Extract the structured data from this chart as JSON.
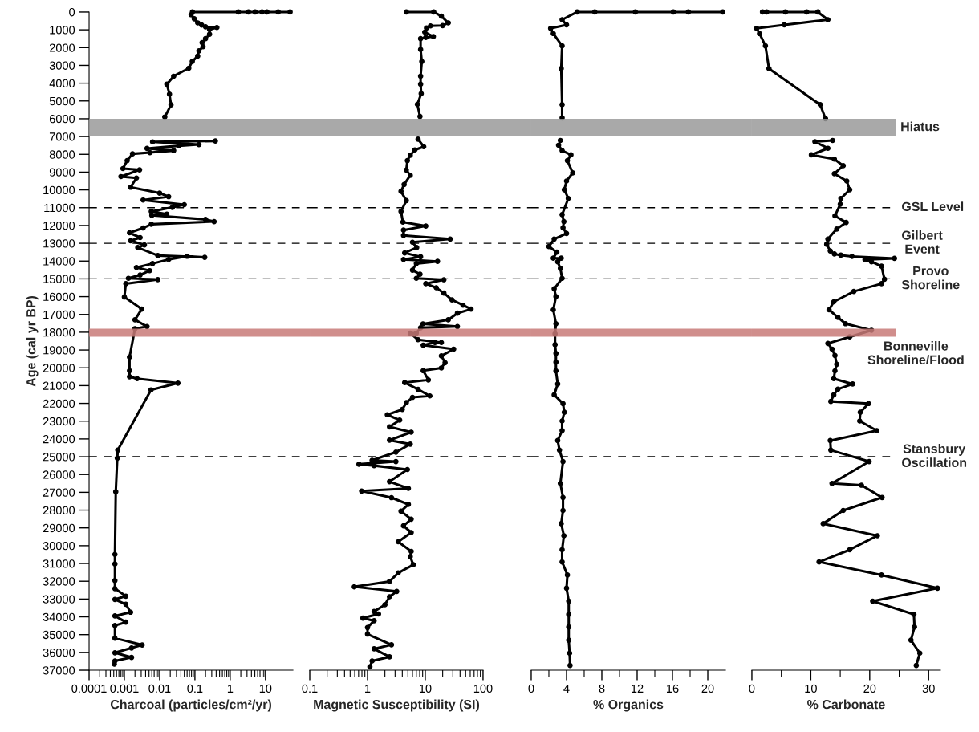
{
  "chart_data": [
    {
      "type": "line",
      "xlabel": "Charcoal (particles/cm²/yr)",
      "ylabel": "Age (cal yr BP)",
      "log": "x",
      "marker": "circle",
      "line_style": "solid",
      "xlim": [
        0.0001,
        60
      ],
      "ylim": [
        37000,
        0
      ],
      "xticks": [
        0.0001,
        0.001,
        0.01,
        0.1,
        1,
        10,
        {
          "value": 0.0002,
          "label": null
        },
        {
          "value": 0.0003,
          "label": null
        },
        {
          "value": 0.0004,
          "label": null
        },
        {
          "value": 0.0005,
          "label": null
        },
        {
          "value": 0.0006,
          "label": null
        },
        {
          "value": 0.0007,
          "label": null
        },
        {
          "value": 0.0008,
          "label": null
        },
        {
          "value": 0.0009,
          "label": null
        },
        {
          "value": 0.002,
          "label": null
        },
        {
          "value": 0.003,
          "label": null
        },
        {
          "value": 0.004,
          "label": null
        },
        {
          "value": 0.005,
          "label": null
        },
        {
          "value": 0.006,
          "label": null
        },
        {
          "value": 0.007,
          "label": null
        },
        {
          "value": 0.008,
          "label": null
        },
        {
          "value": 0.009,
          "label": null
        },
        {
          "value": 0.02,
          "label": null
        },
        {
          "value": 0.03,
          "label": null
        },
        {
          "value": 0.04,
          "label": null
        },
        {
          "value": 0.05,
          "label": null
        },
        {
          "value": 0.06,
          "label": null
        },
        {
          "value": 0.07,
          "label": null
        },
        {
          "value": 0.08,
          "label": null
        },
        {
          "value": 0.09,
          "label": null
        },
        {
          "value": 0.2,
          "label": null
        },
        {
          "value": 0.3,
          "label": null
        },
        {
          "value": 0.4,
          "label": null
        },
        {
          "value": 0.5,
          "label": null
        },
        {
          "value": 0.6,
          "label": null
        },
        {
          "value": 0.7,
          "label": null
        },
        {
          "value": 0.8,
          "label": null
        },
        {
          "value": 0.9,
          "label": null
        },
        {
          "value": 2,
          "label": null
        },
        {
          "value": 3,
          "label": null
        },
        {
          "value": 4,
          "label": null
        },
        {
          "value": 5,
          "label": null
        },
        {
          "value": 6,
          "label": null
        },
        {
          "value": 7,
          "label": null
        },
        {
          "value": 8,
          "label": null
        },
        {
          "value": 9,
          "label": null
        }
      ],
      "yticks": [
        0,
        1000,
        2000,
        3000,
        4000,
        5000,
        6000,
        7000,
        8000,
        9000,
        10000,
        11000,
        12000,
        13000,
        14000,
        15000,
        16000,
        17000,
        18000,
        19000,
        20000,
        21000,
        22000,
        23000,
        24000,
        25000,
        26000,
        27000,
        28000,
        29000,
        30000,
        31000,
        32000,
        33000,
        34000,
        35000,
        36000,
        37000
      ],
      "series": [
        {
          "color": "#000000",
          "x": [
            50,
            23,
            11,
            8,
            5.1,
            3.3,
            1.7,
            0.085,
            0.078,
            0.096,
            0.12,
            0.155,
            0.2,
            0.42,
            0.26,
            0.26,
            0.2,
            0.16,
            0.17,
            0.13,
            0.12,
            0.084,
            0.067,
            0.025,
            0.016,
            0.019,
            0.021,
            0.014,
            null,
            0.38,
            0.0063,
            0.13,
            0.035,
            0.0044,
            0.025,
            0.0053,
            0.0017,
            0.0012,
            0.00091,
            0.0027,
            0.0008,
            0.0022,
            0.0015,
            0.01,
            0.018,
            0.0034,
            0.05,
            0.023,
            0.0058,
            0.016,
            0.006,
            0.2,
            0.35,
            0.0058,
            0.0034,
            0.0014,
            0.0028,
            0.0015,
            0.0037,
            0.0024,
            0.0089,
            0.19,
            0.06,
            0.018,
            0.0063,
            0.0022,
            0.0052,
            0.0028,
            0.0013,
            0.0089,
            0.0011,
            0.001,
            0.0031,
            0.002,
            0.0044,
            0.002,
            0.0014,
            0.0014,
            0.0014,
            0.0023,
            0.033,
            0.0057,
            0.00065,
            0.00063,
            0.00057,
            0.00054,
            0.00054,
            0.00054,
            0.00054,
            0.0011,
            0.00054,
            0.0011,
            0.0015,
            0.00054,
            0.0011,
            0.00054,
            0.00054,
            0.0032,
            0.0016,
            0.00054,
            0.0016,
            0.00054,
            0.00052
          ],
          "values": [
            0,
            0,
            0,
            0,
            0,
            0,
            0,
            0,
            150,
            380,
            610,
            730,
            830,
            870,
            980,
            1250,
            1500,
            1720,
            1950,
            2180,
            2480,
            2780,
            3160,
            3610,
            4060,
            4620,
            5220,
            5900,
            null,
            7250,
            7300,
            7450,
            7520,
            7670,
            7790,
            7900,
            7970,
            8350,
            8800,
            8870,
            9250,
            9330,
            9850,
            10180,
            10380,
            10570,
            10830,
            10980,
            11210,
            11360,
            11430,
            11660,
            11780,
            11930,
            12140,
            12410,
            12680,
            12860,
            13090,
            13240,
            13690,
            13790,
            13730,
            13910,
            14140,
            14360,
            14540,
            14780,
            14970,
            15040,
            15270,
            16020,
            16700,
            17300,
            17680,
            17800,
            19400,
            20160,
            20500,
            20610,
            20860,
            21240,
            24630,
            25080,
            26970,
            30490,
            31030,
            31960,
            32410,
            32840,
            33020,
            33290,
            33740,
            33950,
            34300,
            34490,
            35200,
            35580,
            35750,
            36020,
            36280,
            36480,
            36660
          ]
        }
      ],
      "ref_lines": [
        {
          "axis": "y",
          "value": 11000,
          "color": "#000000",
          "line_style": "dashed"
        },
        {
          "axis": "y",
          "value": 13000,
          "color": "#000000",
          "line_style": "dashed"
        },
        {
          "axis": "y",
          "value": 15000,
          "color": "#000000",
          "line_style": "dashed"
        },
        {
          "axis": "y",
          "value": 25000,
          "color": "#000000",
          "line_style": "dashed"
        }
      ],
      "bands": [
        {
          "axis": "y",
          "from": 6000,
          "to": 7000,
          "color": "#9a9a9a"
        },
        {
          "axis": "y",
          "from": 17800,
          "to": 18250,
          "color": "#c87a78"
        }
      ]
    },
    {
      "type": "line",
      "xlabel": "Magnetic Susceptibility (SI)",
      "log": "x",
      "marker": "circle",
      "line_style": "solid",
      "tick_labels": "x",
      "xlim": [
        0.1,
        100
      ],
      "ylim": [
        37000,
        0
      ],
      "xticks": [
        0.1,
        1,
        10,
        100,
        {
          "value": 0.2,
          "label": null
        },
        {
          "value": 0.3,
          "label": null
        },
        {
          "value": 0.4,
          "label": null
        },
        {
          "value": 0.5,
          "label": null
        },
        {
          "value": 0.6,
          "label": null
        },
        {
          "value": 0.7,
          "label": null
        },
        {
          "value": 0.8,
          "label": null
        },
        {
          "value": 0.9,
          "label": null
        },
        {
          "value": 2,
          "label": null
        },
        {
          "value": 3,
          "label": null
        },
        {
          "value": 4,
          "label": null
        },
        {
          "value": 5,
          "label": null
        },
        {
          "value": 6,
          "label": null
        },
        {
          "value": 7,
          "label": null
        },
        {
          "value": 8,
          "label": null
        },
        {
          "value": 9,
          "label": null
        },
        {
          "value": 20,
          "label": null
        },
        {
          "value": 30,
          "label": null
        },
        {
          "value": 40,
          "label": null
        },
        {
          "value": 50,
          "label": null
        },
        {
          "value": 60,
          "label": null
        },
        {
          "value": 70,
          "label": null
        },
        {
          "value": 80,
          "label": null
        },
        {
          "value": 90,
          "label": null
        }
      ],
      "series": [
        {
          "color": "#000000",
          "x": [
            4.7,
            14,
            19,
            25,
            20,
            12.3,
            10.5,
            9.8,
            13.8,
            10.2,
            8.3,
            8.3,
            8.7,
            8.3,
            8.3,
            8.5,
            7.3,
            8.1,
            null,
            7.5,
            9.4,
            6.6,
            5.5,
            4.9,
            4.7,
            5.5,
            4.3,
            3.8,
            4.7,
            3.8,
            4.1,
            10.2,
            4.2,
            4.2,
            27,
            6.0,
            7.1,
            4.4,
            8.3,
            4.2,
            16.3,
            7.0,
            6.0,
            8.1,
            7.0,
            21,
            10.2,
            15.5,
            21,
            29,
            45,
            62,
            36,
            25,
            9.1,
            36,
            8.3,
            7.0,
            5.5,
            7.5,
            19,
            14.7,
            9.2,
            31,
            19,
            22,
            19,
            9.2,
            11.3,
            4.4,
            7.5,
            12,
            6.0,
            4.7,
            4.0,
            2.2,
            3.6,
            2.4,
            5.7,
            2.4,
            5.5,
            3.1,
            1.2,
            3.1,
            0.71,
            1.3,
            4.9,
            2.4,
            5.1,
            0.79,
            2.6,
            5.1,
            3.8,
            5.7,
            4.2,
            5.7,
            3.4,
            5.7,
            5.5,
            6.2,
            3.4,
            2.4,
            0.59,
            3.2,
            2.4,
            2.0,
            1.3,
            1.55,
            0.83,
            1.3,
            1.0,
            1.0,
            2.6,
            1.3,
            2.4,
            1.2,
            1.1
          ],
          "values": [
            0,
            0,
            230,
            610,
            760,
            780,
            900,
            1130,
            1380,
            1430,
            1500,
            2110,
            2780,
            3610,
            4060,
            4590,
            5190,
            5870,
            null,
            7150,
            7570,
            7750,
            8050,
            8350,
            8880,
            9180,
            9700,
            10080,
            10600,
            11210,
            11810,
            12030,
            12260,
            12560,
            12760,
            12940,
            13240,
            13540,
            13760,
            13910,
            14020,
            14140,
            14510,
            14740,
            14970,
            15050,
            15270,
            15500,
            15800,
            16180,
            16480,
            16700,
            16930,
            17300,
            17530,
            17680,
            17750,
            18050,
            18050,
            18420,
            18580,
            18580,
            18730,
            18950,
            19330,
            19710,
            20010,
            20160,
            20680,
            20830,
            21210,
            21580,
            21660,
            21960,
            22340,
            22640,
            22940,
            23320,
            23620,
            24070,
            24290,
            24740,
            25200,
            25270,
            25420,
            25500,
            25720,
            26400,
            26780,
            26930,
            27300,
            27680,
            28060,
            28510,
            28880,
            29260,
            29780,
            30320,
            30620,
            31070,
            31530,
            32010,
            32310,
            32570,
            32870,
            33320,
            33700,
            33840,
            34070,
            34220,
            34600,
            34970,
            35570,
            35800,
            36250,
            36480,
            36810
          ]
        }
      ],
      "ref_lines": [
        {
          "axis": "y",
          "value": 11000,
          "color": "#000000",
          "line_style": "dashed"
        },
        {
          "axis": "y",
          "value": 13000,
          "color": "#000000",
          "line_style": "dashed"
        },
        {
          "axis": "y",
          "value": 15000,
          "color": "#000000",
          "line_style": "dashed"
        },
        {
          "axis": "y",
          "value": 25000,
          "color": "#000000",
          "line_style": "dashed"
        }
      ],
      "bands": [
        {
          "axis": "y",
          "from": 6000,
          "to": 7000,
          "color": "#9a9a9a"
        },
        {
          "axis": "y",
          "from": 17800,
          "to": 18250,
          "color": "#c87a78"
        }
      ]
    },
    {
      "type": "line",
      "xlabel": "% Organics",
      "marker": "circle",
      "line_style": "solid",
      "tick_labels": "x",
      "xlim": [
        0,
        22
      ],
      "ylim": [
        37000,
        0
      ],
      "xticks": [
        0,
        4,
        8,
        12,
        16,
        20,
        {
          "value": 2,
          "label": null
        },
        {
          "value": 6,
          "label": null
        },
        {
          "value": 10,
          "label": null
        },
        {
          "value": 14,
          "label": null
        },
        {
          "value": 18,
          "label": null
        }
      ],
      "series": [
        {
          "color": "#000000",
          "x": [
            21.7,
            17.8,
            16.1,
            11.8,
            7.2,
            5.2,
            3.5,
            4.0,
            2.2,
            2.5,
            3.5,
            3.4,
            3.5,
            3.5,
            null,
            3.3,
            3.1,
            3.5,
            4.5,
            4.1,
            4.7,
            4.0,
            3.75,
            4.2,
            3.5,
            3.7,
            3.6,
            4.0,
            2.6,
            2.0,
            2.9,
            2.5,
            3.4,
            3.0,
            3.3,
            3.5,
            2.6,
            2.8,
            2.5,
            2.8,
            2.7,
            2.7,
            2.8,
            2.8,
            2.8,
            3.0,
            2.6,
            3.6,
            3.75,
            3.5,
            3.5,
            3.0,
            3.2,
            3.6,
            3.3,
            3.6,
            3.6,
            3.4,
            3.7,
            3.5,
            3.5,
            4.1,
            4.0,
            4.25,
            4.25,
            4.25,
            4.25,
            4.35,
            4.4
          ],
          "values": [
            0,
            0,
            0,
            0,
            0,
            0,
            430,
            720,
            920,
            1210,
            1900,
            3180,
            5210,
            5950,
            null,
            7220,
            7490,
            7790,
            8030,
            8350,
            9040,
            9500,
            9990,
            10480,
            11390,
            11780,
            12130,
            12450,
            12760,
            13180,
            13500,
            13840,
            13840,
            14040,
            14410,
            14970,
            15560,
            16000,
            16740,
            17520,
            18090,
            18700,
            19190,
            19680,
            20170,
            20910,
            21520,
            22010,
            22500,
            22990,
            23530,
            24090,
            24630,
            25270,
            26500,
            27290,
            28020,
            28760,
            29440,
            30230,
            30910,
            31650,
            32390,
            33120,
            33860,
            34570,
            35310,
            36040,
            36730
          ]
        }
      ],
      "ref_lines": [
        {
          "axis": "y",
          "value": 11000,
          "color": "#000000",
          "line_style": "dashed"
        },
        {
          "axis": "y",
          "value": 13000,
          "color": "#000000",
          "line_style": "dashed"
        },
        {
          "axis": "y",
          "value": 15000,
          "color": "#000000",
          "line_style": "dashed"
        },
        {
          "axis": "y",
          "value": 25000,
          "color": "#000000",
          "line_style": "dashed"
        }
      ],
      "bands": [
        {
          "axis": "y",
          "from": 6000,
          "to": 7000,
          "color": "#9a9a9a"
        },
        {
          "axis": "y",
          "from": 17800,
          "to": 18250,
          "color": "#c87a78"
        }
      ]
    },
    {
      "type": "line",
      "xlabel": "% Carbonate",
      "marker": "circle",
      "line_style": "solid",
      "tick_labels": "x",
      "xlim": [
        0,
        32
      ],
      "ylim": [
        37000,
        0
      ],
      "xticks": [
        0,
        10,
        20,
        30,
        {
          "value": 5,
          "label": null
        },
        {
          "value": 15,
          "label": null
        },
        {
          "value": 25,
          "label": null
        }
      ],
      "series": [
        {
          "color": "#000000",
          "x": [
            1.8,
            2.5,
            5.7,
            9.3,
            11.2,
            12.9,
            5.5,
            0.8,
            1.3,
            2.3,
            2.9,
            11.6,
            12.5,
            null,
            13.7,
            10.7,
            12.9,
            10.1,
            14.0,
            15.5,
            14.0,
            16.1,
            16.6,
            15.1,
            15.0,
            14.1,
            16.0,
            14.4,
            12.9,
            12.7,
            13.3,
            14.0,
            15.1,
            17.0,
            24.2,
            19.2,
            20.3,
            22.0,
            22.5,
            22.0,
            17.3,
            13.9,
            13.1,
            14.6,
            15.9,
            20.3,
            16.6,
            12.9,
            13.6,
            14.1,
            14.4,
            14.1,
            13.9,
            17.1,
            14.6,
            13.9,
            13.4,
            19.8,
            18.4,
            18.3,
            21.2,
            13.3,
            13.4,
            19.9,
            13.6,
            18.6,
            22.1,
            15.5,
            12.1,
            21.3,
            16.6,
            11.4,
            22.0,
            31.5,
            20.5,
            27.5,
            27.6,
            27.0,
            28.5,
            27.9
          ],
          "values": [
            0,
            0,
            0,
            0,
            0,
            430,
            720,
            920,
            1210,
            1900,
            3180,
            5210,
            6000,
            null,
            7220,
            7290,
            7660,
            8030,
            8270,
            8640,
            9090,
            9500,
            9990,
            10480,
            10800,
            11460,
            11830,
            12200,
            12760,
            13060,
            13430,
            13600,
            13670,
            13740,
            13850,
            13920,
            14040,
            14290,
            15020,
            15270,
            15710,
            16290,
            16740,
            17160,
            17520,
            17890,
            18260,
            18630,
            18950,
            19310,
            19800,
            20170,
            20610,
            20910,
            21200,
            21520,
            21890,
            22010,
            22500,
            22990,
            23530,
            24090,
            24630,
            25270,
            26500,
            26600,
            27290,
            28020,
            28760,
            29440,
            30230,
            30910,
            31650,
            32390,
            33120,
            33860,
            34570,
            35310,
            36040,
            36730
          ]
        }
      ],
      "ref_lines": [
        {
          "axis": "y",
          "value": 11000,
          "label": "GSL Level",
          "color": "#000000",
          "line_style": "dashed"
        },
        {
          "axis": "y",
          "value": 13000,
          "label": "Gilbert\nEvent",
          "color": "#000000",
          "line_style": "dashed"
        },
        {
          "axis": "y",
          "value": 15000,
          "label": "Provo\nShoreline",
          "color": "#000000",
          "line_style": "dashed"
        },
        {
          "axis": "y",
          "value": 25000,
          "label": "Stansbury\nOscillation",
          "color": "#000000",
          "line_style": "dashed"
        }
      ],
      "bands": [
        {
          "axis": "y",
          "from": 6000,
          "to": 7000,
          "label": "Hiatus",
          "color": "#9a9a9a"
        },
        {
          "axis": "y",
          "from": 17800,
          "to": 18250,
          "label": "Bonneville\nShoreline/Flood",
          "color": "#c87a78"
        }
      ]
    }
  ]
}
